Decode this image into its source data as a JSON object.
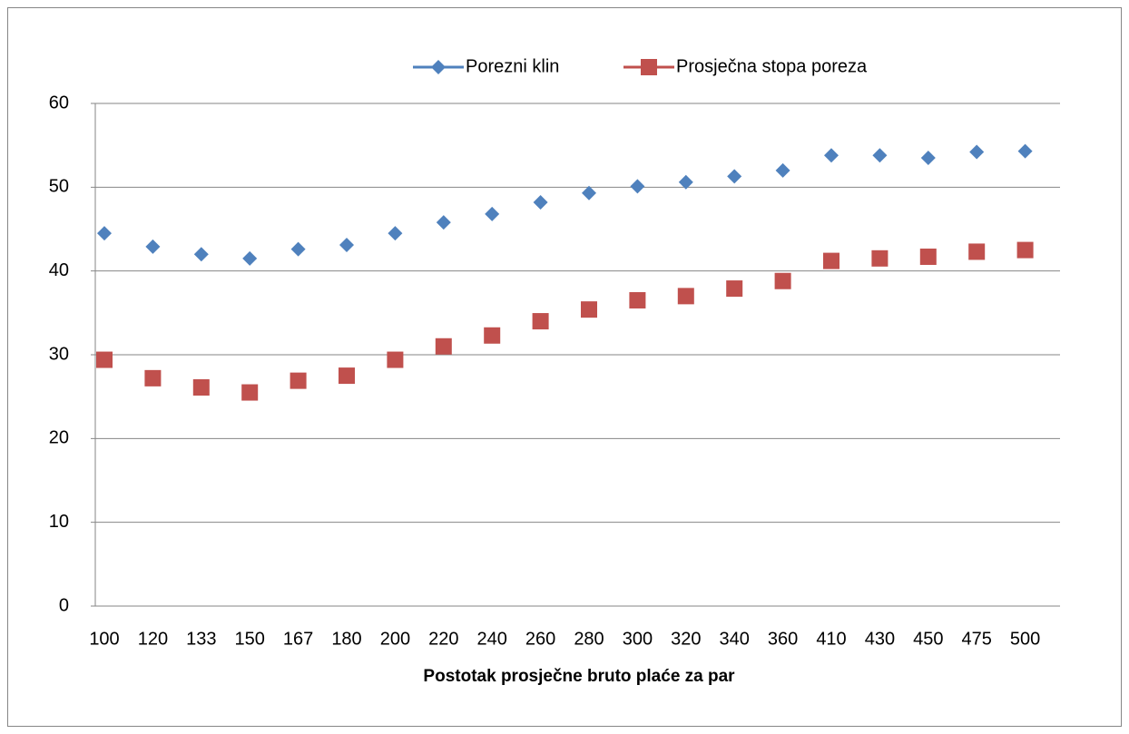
{
  "chart_data": {
    "type": "scatter",
    "x_label": "Postotak prosječne bruto plaće za par",
    "categories": [
      "100",
      "120",
      "133",
      "150",
      "167",
      "180",
      "200",
      "220",
      "240",
      "260",
      "280",
      "300",
      "320",
      "340",
      "360",
      "410",
      "430",
      "450",
      "475",
      "500"
    ],
    "series": [
      {
        "name": "Porezni klin",
        "color": "#4f81bd",
        "marker": "diamond",
        "values": [
          44.5,
          42.9,
          42.0,
          41.5,
          42.6,
          43.1,
          44.5,
          45.8,
          46.8,
          48.2,
          49.3,
          50.1,
          50.6,
          51.3,
          52.0,
          53.8,
          53.8,
          53.5,
          54.2,
          54.3
        ]
      },
      {
        "name": "Prosječna stopa poreza",
        "color": "#c0504d",
        "marker": "square",
        "values": [
          29.4,
          27.2,
          26.1,
          25.5,
          26.9,
          27.5,
          29.4,
          31.0,
          32.3,
          34.0,
          35.4,
          36.5,
          37.0,
          37.9,
          38.8,
          41.2,
          41.5,
          41.7,
          42.3,
          42.5
        ]
      }
    ],
    "ylim": [
      0,
      60
    ],
    "yticks": [
      0,
      10,
      20,
      30,
      40,
      50,
      60
    ],
    "grid": true,
    "legend": "top"
  }
}
